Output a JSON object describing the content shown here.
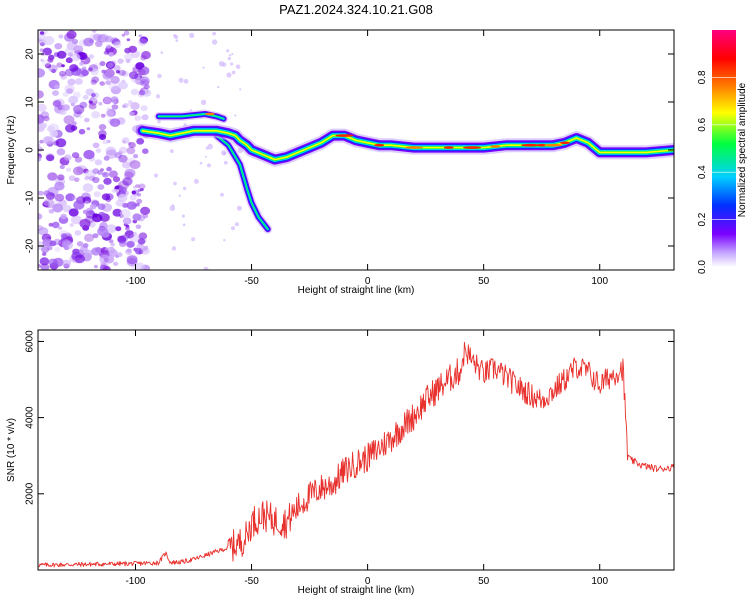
{
  "figure_title": "PAZ1.2024.324.10.21.G08",
  "chart_data": [
    {
      "type": "heatmap",
      "title": "PAZ1.2024.324.10.21.G08",
      "xlabel": "Height of straight line (km)",
      "ylabel": "Frequency (Hz)",
      "xlim": [
        -142,
        132
      ],
      "ylim": [
        -25,
        25
      ],
      "xticks": [
        -100,
        -50,
        0,
        50,
        100
      ],
      "yticks": [
        -20,
        -10,
        0,
        10,
        20
      ],
      "colorbar": {
        "label": "Normalized spectral amplitude",
        "range": [
          0,
          1
        ],
        "ticks": [
          "0.0",
          "0.2",
          "0.4",
          "0.6",
          "0.8"
        ],
        "colors": [
          "#ffffff",
          "#7a00ff",
          "#0030ff",
          "#00d0ff",
          "#00ff40",
          "#ffff00",
          "#ff8000",
          "#ff0000",
          "#ff0080"
        ]
      },
      "ridge": {
        "x": [
          -97,
          -90,
          -85,
          -80,
          -75,
          -70,
          -65,
          -60,
          -57,
          -55,
          -52,
          -50,
          -45,
          -40,
          -35,
          -30,
          -25,
          -20,
          -15,
          -10,
          -5,
          0,
          5,
          10,
          20,
          30,
          40,
          50,
          60,
          70,
          80,
          85,
          90,
          95,
          100,
          110,
          120,
          132
        ],
        "y": [
          4,
          3.5,
          3,
          3.5,
          4,
          4,
          4,
          3.5,
          3,
          2,
          1,
          0,
          -1,
          -2,
          -1.5,
          -0.5,
          0.5,
          1.5,
          3,
          3,
          2,
          1.5,
          1,
          1,
          0.5,
          0.5,
          0.5,
          0.5,
          1,
          1,
          1,
          1.5,
          2.5,
          1.5,
          -0.5,
          -0.5,
          -0.5,
          0
        ]
      },
      "noise_region_x": [
        -142,
        -95
      ],
      "branches": [
        {
          "x": [
            -90,
            -80,
            -70,
            -65,
            -62
          ],
          "y": [
            7,
            7,
            7.5,
            7,
            6.5
          ]
        },
        {
          "x": [
            -65,
            -60,
            -55,
            -52,
            -50,
            -47,
            -43
          ],
          "y": [
            3,
            1,
            -3,
            -8,
            -11,
            -14,
            -16.5
          ]
        }
      ]
    },
    {
      "type": "line",
      "xlabel": "Height of straight line (km)",
      "ylabel": "SNR (10 * v/v)",
      "xlim": [
        -142,
        132
      ],
      "ylim": [
        0,
        6300
      ],
      "xticks": [
        -100,
        -50,
        0,
        50,
        100
      ],
      "yticks": [
        2000,
        4000,
        6000
      ],
      "color": "#e8302c",
      "x": [
        -142,
        -120,
        -100,
        -90,
        -87,
        -85,
        -80,
        -75,
        -70,
        -65,
        -60,
        -55,
        -52,
        -50,
        -45,
        -40,
        -35,
        -30,
        -25,
        -20,
        -15,
        -10,
        -5,
        0,
        5,
        10,
        15,
        20,
        25,
        30,
        35,
        40,
        42,
        45,
        50,
        55,
        60,
        65,
        70,
        75,
        80,
        85,
        90,
        95,
        100,
        105,
        110,
        112,
        113,
        118,
        125,
        132
      ],
      "values": [
        130,
        150,
        170,
        190,
        450,
        200,
        210,
        280,
        380,
        490,
        580,
        720,
        900,
        1250,
        1450,
        1300,
        1250,
        1650,
        1950,
        2150,
        2250,
        2600,
        2800,
        2950,
        3200,
        3450,
        3750,
        4050,
        4450,
        4750,
        5000,
        5250,
        5800,
        5500,
        5150,
        5300,
        5050,
        4800,
        4600,
        4450,
        4700,
        5000,
        5350,
        5200,
        4850,
        5100,
        5300,
        3050,
        2900,
        2750,
        2650,
        2700
      ]
    }
  ]
}
